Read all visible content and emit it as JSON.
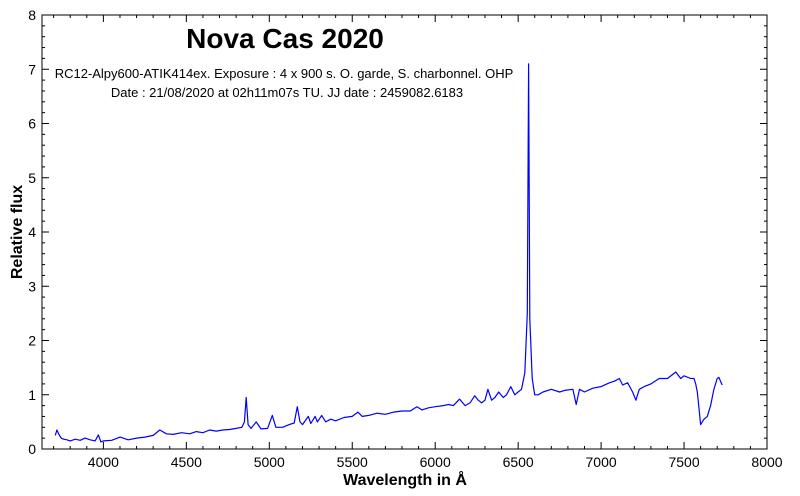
{
  "chart_data": {
    "type": "line",
    "title": "Nova Cas 2020",
    "subtitle_lines": [
      "RC12-Alpy600-ATIK414ex. Exposure : 4 x 900 s. O. garde, S. charbonnel. OHP",
      "Date : 21/08/2020 at 02h11m07s TU. JJ date : 2459082.6183"
    ],
    "xlabel": "Wavelength in Å",
    "ylabel": "Relative flux",
    "xlim": [
      3630,
      8000
    ],
    "ylim": [
      0,
      8
    ],
    "xticks": [
      "4000",
      "4500",
      "5000",
      "5500",
      "6000",
      "6500",
      "7000",
      "7500",
      "8000"
    ],
    "yticks": [
      "0",
      "1",
      "2",
      "3",
      "4",
      "5",
      "6",
      "7",
      "8"
    ],
    "grid": false,
    "legend": "none",
    "line_color": "#0000ff",
    "series": [
      {
        "x": [
          3710,
          3720,
          3730,
          3745,
          3760,
          3780,
          3800,
          3830,
          3860,
          3890,
          3920,
          3950,
          3970,
          3985,
          4000,
          4050,
          4101,
          4150,
          4200,
          4250,
          4300,
          4340,
          4380,
          4420,
          4471,
          4520,
          4560,
          4600,
          4640,
          4680,
          4720,
          4760,
          4800,
          4835,
          4850,
          4861,
          4872,
          4890,
          4921,
          4950,
          4990,
          5018,
          5040,
          5080,
          5120,
          5150,
          5169,
          5185,
          5200,
          5235,
          5250,
          5276,
          5290,
          5316,
          5340,
          5370,
          5400,
          5450,
          5500,
          5534,
          5560,
          5600,
          5650,
          5700,
          5750,
          5800,
          5850,
          5890,
          5920,
          5960,
          6000,
          6050,
          6080,
          6110,
          6147,
          6180,
          6210,
          6238,
          6260,
          6280,
          6300,
          6318,
          6340,
          6360,
          6383,
          6410,
          6430,
          6456,
          6480,
          6500,
          6520,
          6540,
          6555,
          6563,
          6570,
          6585,
          6600,
          6620,
          6650,
          6700,
          6750,
          6780,
          6830,
          6850,
          6870,
          6900,
          6950,
          7000,
          7050,
          7080,
          7110,
          7130,
          7160,
          7190,
          7210,
          7230,
          7260,
          7300,
          7350,
          7400,
          7450,
          7480,
          7500,
          7540,
          7560,
          7570,
          7580,
          7590,
          7600,
          7620,
          7640,
          7660,
          7680,
          7700,
          7710,
          7720,
          7730
        ],
        "y": [
          0.25,
          0.35,
          0.28,
          0.2,
          0.18,
          0.17,
          0.15,
          0.18,
          0.16,
          0.2,
          0.17,
          0.15,
          0.26,
          0.13,
          0.15,
          0.16,
          0.22,
          0.17,
          0.2,
          0.22,
          0.25,
          0.35,
          0.28,
          0.27,
          0.3,
          0.28,
          0.32,
          0.3,
          0.35,
          0.33,
          0.35,
          0.36,
          0.38,
          0.4,
          0.5,
          0.95,
          0.45,
          0.38,
          0.5,
          0.37,
          0.38,
          0.62,
          0.4,
          0.4,
          0.45,
          0.48,
          0.78,
          0.5,
          0.45,
          0.6,
          0.47,
          0.6,
          0.5,
          0.62,
          0.5,
          0.55,
          0.52,
          0.58,
          0.6,
          0.68,
          0.6,
          0.62,
          0.66,
          0.64,
          0.68,
          0.7,
          0.7,
          0.78,
          0.72,
          0.76,
          0.78,
          0.8,
          0.82,
          0.8,
          0.92,
          0.8,
          0.85,
          0.98,
          0.9,
          0.85,
          0.9,
          1.1,
          0.9,
          0.95,
          1.05,
          0.95,
          1.0,
          1.15,
          1.0,
          1.05,
          1.1,
          1.4,
          2.5,
          7.1,
          2.4,
          1.3,
          1.0,
          1.0,
          1.05,
          1.1,
          1.05,
          1.08,
          1.1,
          0.82,
          1.1,
          1.05,
          1.12,
          1.15,
          1.22,
          1.25,
          1.3,
          1.18,
          1.22,
          1.05,
          0.9,
          1.1,
          1.15,
          1.2,
          1.3,
          1.3,
          1.42,
          1.3,
          1.35,
          1.3,
          1.3,
          1.2,
          1.05,
          0.75,
          0.45,
          0.55,
          0.6,
          0.8,
          1.1,
          1.3,
          1.32,
          1.25,
          1.18
        ]
      }
    ]
  }
}
